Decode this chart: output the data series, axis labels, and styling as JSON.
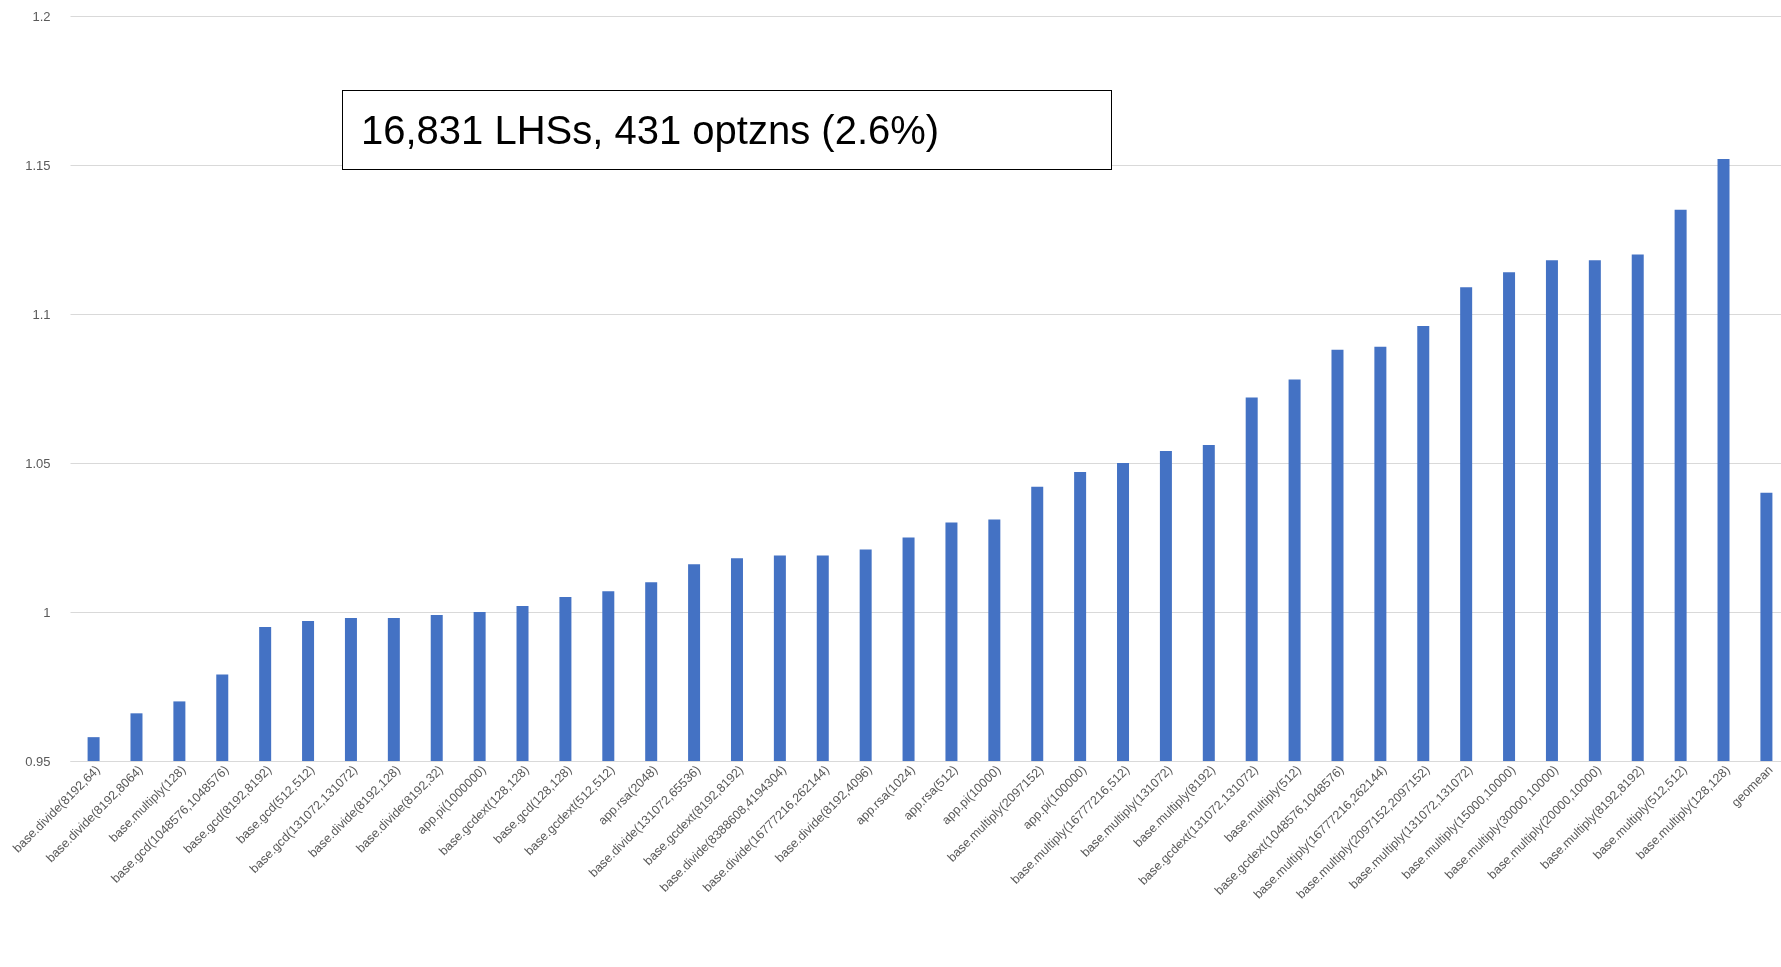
{
  "chart_data": {
    "type": "bar",
    "categories": [
      "base.divide(8192,64)",
      "base.divide(8192,8064)",
      "base.multiply(128)",
      "base.gcd(1048576,1048576)",
      "base.gcd(8192,8192)",
      "base.gcd(512,512)",
      "base.gcd(131072,131072)",
      "base.divide(8192,128)",
      "base.divide(8192,32)",
      "app.pi(1000000)",
      "base.gcdext(128,128)",
      "base.gcd(128,128)",
      "base.gcdext(512,512)",
      "app.rsa(2048)",
      "base.divide(131072,65536)",
      "base.gcdext(8192,8192)",
      "base.divide(8388608,4194304)",
      "base.divide(16777216,262144)",
      "base.divide(8192,4096)",
      "app.rsa(1024)",
      "app.rsa(512)",
      "app.pi(10000)",
      "base.multiply(2097152)",
      "app.pi(100000)",
      "base.multiply(16777216,512)",
      "base.multiply(131072)",
      "base.multiply(8192)",
      "base.gcdext(131072,131072)",
      "base.multiply(512)",
      "base.gcdext(1048576,1048576)",
      "base.multiply(16777216,262144)",
      "base.multiply(2097152,2097152)",
      "base.multiply(131072,131072)",
      "base.multiply(15000,10000)",
      "base.multiply(30000,10000)",
      "base.multiply(20000,10000)",
      "base.multiply(8192,8192)",
      "base.multiply(512,512)",
      "base.multiply(128,128)",
      "geomean"
    ],
    "values": [
      0.958,
      0.966,
      0.97,
      0.979,
      0.995,
      0.997,
      0.998,
      0.998,
      0.999,
      1.0,
      1.002,
      1.005,
      1.007,
      1.01,
      1.016,
      1.018,
      1.019,
      1.019,
      1.021,
      1.025,
      1.03,
      1.031,
      1.042,
      1.047,
      1.05,
      1.054,
      1.056,
      1.072,
      1.078,
      1.088,
      1.089,
      1.096,
      1.109,
      1.114,
      1.118,
      1.118,
      1.12,
      1.135,
      1.152,
      1.04
    ],
    "color": "#4472c4",
    "ylim": [
      0.95,
      1.2
    ],
    "yticks": [
      0.95,
      1,
      1.05,
      1.1,
      1.15,
      1.2
    ],
    "grid": "y",
    "annotations": [
      "16,831 LHSs, 431 optzns (2.6%)"
    ]
  }
}
